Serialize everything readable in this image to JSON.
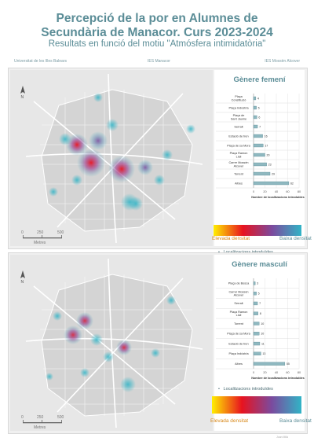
{
  "header": {
    "title_line1": "Percepció de la por en Alumnes de",
    "title_line2": "Secundària de Manacor. Curs 2023-2024",
    "subtitle": "Resultats en funció del motiu \"Atmósfera intimidatòria\"",
    "institution_left": "Universitat de les Illes Balears",
    "institution_center": "IES Manacor",
    "institution_right": "IES Mossèn Alcover"
  },
  "map_scale": {
    "t0": "0",
    "t1": "250",
    "t2": "500",
    "unit": "Metres"
  },
  "gradient": {
    "left_label": "Elevada densitat",
    "right_label": "Baixa densitat",
    "colors": [
      "#ffee00",
      "#e8131f",
      "#7b4a9e",
      "#31b4c6"
    ]
  },
  "panels": [
    {
      "heading": "Gènere femení",
      "legend": "Localitzacions introduïdes",
      "chart_data": {
        "type": "bar",
        "orientation": "horizontal",
        "xlabel": "Nombre de localitzacions introduïdes",
        "xlim": [
          0,
          80
        ],
        "xticks": [
          "0",
          "20",
          "40",
          "60",
          "80"
        ],
        "categories": [
          "Plaça Constitució",
          "Plaça Indústria",
          "Plaça de Sant Jaume",
          "Serralt",
          "Estació de tren",
          "Plaça de sa Mora",
          "Plaça Ramon Llull",
          "Carrer Mossèn Alcover",
          "Torrent",
          "Altres"
        ],
        "values": [
          4,
          5,
          6,
          7,
          16,
          17,
          20,
          23,
          29,
          62
        ]
      }
    },
    {
      "heading": "Gènere masculí",
      "legend": "Localitzacions introduïdes",
      "chart_data": {
        "type": "bar",
        "orientation": "horizontal",
        "xlabel": "Nombre de localitzacions introduïdes",
        "xlim": [
          0,
          80
        ],
        "xticks": [
          "0",
          "20",
          "40",
          "60",
          "80"
        ],
        "categories": [
          "Plaça de Bosca",
          "Carrer Mossèn Alcover",
          "Serralt",
          "Plaça Ramon Llull",
          "Torrent",
          "Plaça de sa Mora",
          "Estació de tren",
          "Plaça Indústria",
          "Altres"
        ],
        "values": [
          3,
          5,
          7,
          8,
          10,
          10,
          11,
          13,
          55
        ]
      }
    }
  ],
  "footer": {
    "signature": "Joan Milà"
  }
}
